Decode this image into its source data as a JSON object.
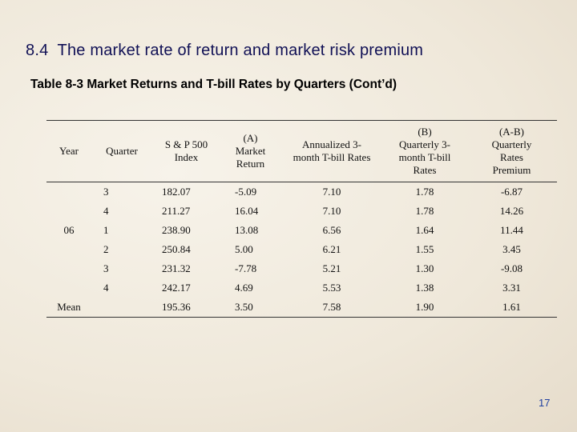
{
  "header": {
    "title": "8.4  The market rate of return and market risk premium",
    "subtitle": "Table 8-3 Market Returns and T-bill Rates by Quarters (Cont’d)"
  },
  "table": {
    "columns": [
      "Year",
      "Quarter",
      "S & P 500\nIndex",
      "(A)\nMarket\nReturn",
      "Annualized 3-\nmonth T-bill Rates",
      "(B)\nQuarterly 3-\nmonth T-bill\nRates",
      "(A-B)\nQuarterly\nRates\nPremium"
    ],
    "rows": [
      {
        "quarter": "3",
        "values": [
          "182.07",
          "-5.09",
          "7.10",
          "1.78",
          "-6.87"
        ]
      },
      {
        "quarter": "4",
        "values": [
          "211.27",
          "16.04",
          "7.10",
          "1.78",
          "14.26"
        ]
      },
      {
        "year": "06",
        "quarter": "1",
        "values": [
          "238.90",
          "13.08",
          "6.56",
          "1.64",
          "11.44"
        ]
      },
      {
        "quarter": "2",
        "values": [
          "250.84",
          "5.00",
          "6.21",
          "1.55",
          "3.45"
        ]
      },
      {
        "quarter": "3",
        "values": [
          "231.32",
          "-7.78",
          "5.21",
          "1.30",
          "-9.08"
        ]
      },
      {
        "quarter": "4",
        "values": [
          "242.17",
          "4.69",
          "5.53",
          "1.38",
          "3.31"
        ]
      },
      {
        "year": "Mean",
        "values": [
          "195.36",
          "3.50",
          "7.58",
          "1.90",
          "1.61"
        ]
      }
    ]
  },
  "footer": {
    "page_number": "17"
  }
}
